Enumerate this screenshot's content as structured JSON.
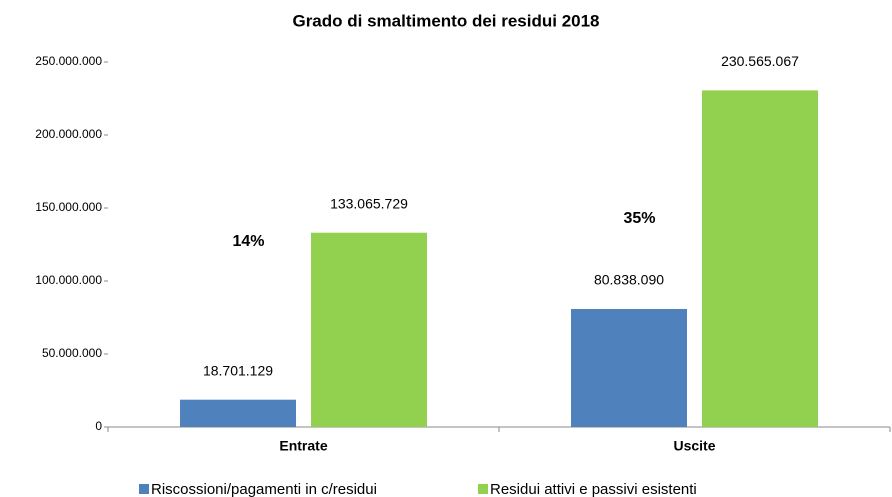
{
  "chart_data": {
    "type": "bar",
    "title": "Grado di smaltimento dei residui 2018",
    "categories": [
      "Entrate",
      "Uscite"
    ],
    "series": [
      {
        "name": "Riscossioni/pagamenti in c/residui",
        "color": "#4f81bd",
        "values": [
          18701129,
          80838090
        ],
        "value_labels": [
          "18.701.129",
          "80.838.090"
        ]
      },
      {
        "name": "Residui attivi e passivi esistenti",
        "color": "#92d050",
        "values": [
          133065729,
          230565067
        ],
        "value_labels": [
          "133.065.729",
          "230.565.067"
        ]
      }
    ],
    "annotations": [
      "14%",
      "35%"
    ],
    "ylim": [
      0,
      250000000
    ],
    "yticks": [
      0,
      {
        "value": 50000000,
        "label": "50.000.000"
      },
      {
        "value": 100000000,
        "label": "100.000.000"
      },
      {
        "value": 150000000,
        "label": "150.000.000"
      },
      {
        "value": 200000000,
        "label": "200.000.000"
      },
      {
        "value": 250000000,
        "label": "250.000.000"
      }
    ],
    "legend": "bottom"
  }
}
